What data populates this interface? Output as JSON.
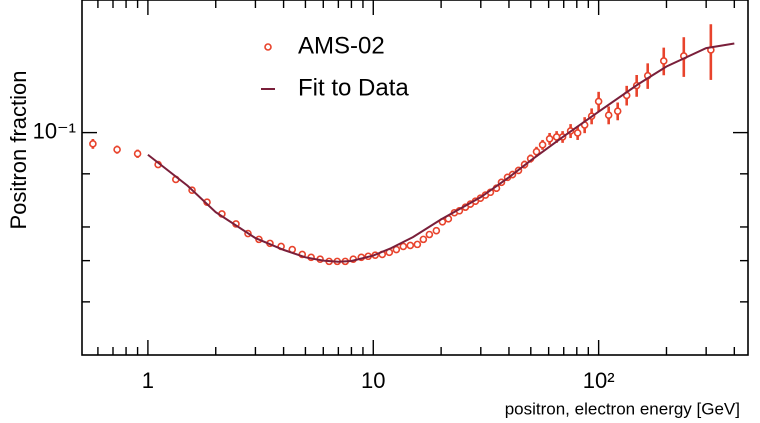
{
  "chart_data": {
    "type": "scatter",
    "xlabel": "positron, electron energy [GeV]",
    "ylabel": "Positron fraction",
    "xscale": "log",
    "yscale": "log",
    "xlim": [
      0.51,
      460
    ],
    "ylim": [
      0.03,
      0.205
    ],
    "xticks": [
      1,
      10,
      {
        "value": 100,
        "label": "10²"
      }
    ],
    "xminor": [
      0.6,
      0.7,
      0.8,
      0.9,
      2,
      3,
      4,
      5,
      6,
      7,
      8,
      9,
      20,
      30,
      40,
      50,
      60,
      70,
      80,
      90,
      200,
      300,
      400
    ],
    "yticks": [
      {
        "value": 0.1,
        "label": "10⁻¹"
      }
    ],
    "yminor": [
      0.04,
      0.05,
      0.06,
      0.08
    ],
    "legend": "upper-left",
    "series": [
      {
        "name": "AMS-02",
        "type": "scatter",
        "color": "#e8432c",
        "x": [
          0.57,
          0.73,
          0.9,
          1.11,
          1.33,
          1.57,
          1.83,
          2.13,
          2.46,
          2.78,
          3.11,
          3.48,
          3.9,
          4.37,
          4.84,
          5.3,
          5.81,
          6.37,
          6.92,
          7.51,
          8.15,
          8.85,
          9.5,
          10.2,
          10.96,
          11.78,
          12.66,
          13.59,
          14.6,
          15.69,
          16.68,
          17.74,
          19.05,
          20.27,
          21.54,
          22.91,
          24.11,
          25.64,
          26.98,
          28.4,
          29.89,
          31.46,
          33.11,
          35.22,
          37.06,
          39.41,
          41.48,
          44.1,
          46.9,
          49.9,
          53.0,
          56.4,
          60.6,
          65.1,
          69.2,
          75.1,
          80.7,
          86.7,
          93.1,
          100,
          110.8,
          121.5,
          133.2,
          147.5,
          165.1,
          194.5,
          238.7,
          314.7
        ],
        "values": [
          0.0941,
          0.0912,
          0.0892,
          0.0841,
          0.0776,
          0.0732,
          0.0686,
          0.0644,
          0.061,
          0.0579,
          0.0561,
          0.0549,
          0.054,
          0.0531,
          0.0517,
          0.0509,
          0.0504,
          0.0498,
          0.0498,
          0.0498,
          0.0504,
          0.0509,
          0.0512,
          0.0515,
          0.0517,
          0.0523,
          0.0531,
          0.054,
          0.0543,
          0.0546,
          0.0561,
          0.0576,
          0.0588,
          0.0617,
          0.0627,
          0.0648,
          0.0655,
          0.0668,
          0.0679,
          0.069,
          0.0701,
          0.0713,
          0.0724,
          0.074,
          0.0764,
          0.0785,
          0.0797,
          0.0815,
          0.0841,
          0.0869,
          0.0902,
          0.0936,
          0.0967,
          0.0977,
          0.0977,
          0.1009,
          0.0998,
          0.1042,
          0.1093,
          0.1184,
          0.1099,
          0.1123,
          0.1223,
          0.129,
          0.1361,
          0.1474,
          0.1514,
          0.1564
        ],
        "errors": [
          0.0025,
          0.002,
          0.002,
          0.001,
          0.001,
          0.001,
          0.001,
          0.0008,
          0.0008,
          0.0008,
          0.0008,
          0.0008,
          0.0008,
          0.0008,
          0.0008,
          0.0008,
          0.0008,
          0.0008,
          0.0008,
          0.0008,
          0.0008,
          0.0008,
          0.0008,
          0.0008,
          0.0008,
          0.0008,
          0.0008,
          0.0008,
          0.0008,
          0.0008,
          0.001,
          0.001,
          0.001,
          0.001,
          0.001,
          0.001,
          0.0012,
          0.0013,
          0.0013,
          0.0013,
          0.0013,
          0.0013,
          0.0013,
          0.0015,
          0.0015,
          0.0015,
          0.0016,
          0.0016,
          0.0018,
          0.0019,
          0.0024,
          0.0025,
          0.0031,
          0.0031,
          0.0031,
          0.0038,
          0.0037,
          0.0045,
          0.0047,
          0.0063,
          0.0053,
          0.0054,
          0.0065,
          0.0076,
          0.0094,
          0.011,
          0.0162,
          0.0234
        ]
      },
      {
        "name": "Fit to Data",
        "type": "line",
        "color": "#7a1f3a",
        "x": [
          1,
          1.5,
          2,
          3,
          4,
          5,
          6,
          7,
          8,
          10,
          12,
          15,
          20,
          25,
          30,
          40,
          50,
          70,
          100,
          150,
          200,
          300,
          400
        ],
        "values": [
          0.0887,
          0.075,
          0.065,
          0.0565,
          0.053,
          0.0509,
          0.05,
          0.0497,
          0.0499,
          0.0514,
          0.0535,
          0.0568,
          0.0625,
          0.0668,
          0.0705,
          0.0785,
          0.086,
          0.098,
          0.112,
          0.13,
          0.143,
          0.158,
          0.162
        ]
      }
    ]
  }
}
